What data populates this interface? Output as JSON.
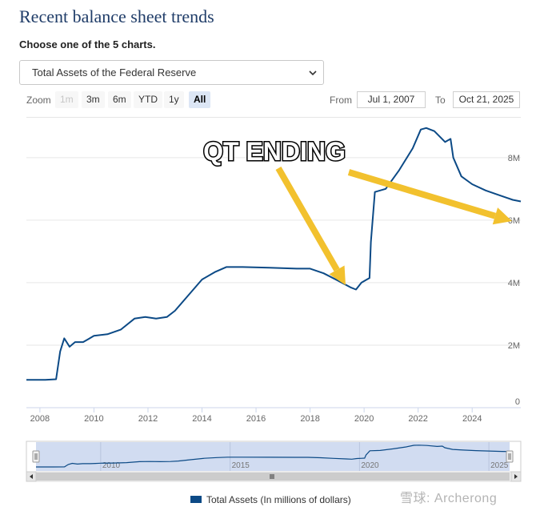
{
  "page": {
    "title": "Recent balance sheet trends",
    "subtitle": "Choose one of the 5 charts.",
    "select_value": "Total Assets of the Federal Reserve"
  },
  "zoom": {
    "label": "Zoom",
    "buttons": [
      {
        "label": "1m",
        "state": "disabled"
      },
      {
        "label": "3m",
        "state": "normal"
      },
      {
        "label": "6m",
        "state": "normal"
      },
      {
        "label": "YTD",
        "state": "normal"
      },
      {
        "label": "1y",
        "state": "normal"
      },
      {
        "label": "All",
        "state": "active"
      }
    ]
  },
  "range": {
    "from_label": "From",
    "from_value": "Jul 1, 2007",
    "to_label": "To",
    "to_value": "Oct 21, 2025"
  },
  "annotation": {
    "text": "QT ENDING",
    "arrow_color": "#f2c12e"
  },
  "legend": {
    "label": "Total Assets (In millions of dollars)"
  },
  "watermark": "雪球: Archerong",
  "colors": {
    "line": "#0c4a86",
    "navigator_fill": "#c9d6ef"
  },
  "chart_data": {
    "type": "line",
    "title": "",
    "xlabel": "",
    "ylabel": "",
    "x_ticks": [
      "2008",
      "2010",
      "2012",
      "2014",
      "2016",
      "2018",
      "2020",
      "2022",
      "2024"
    ],
    "y_ticks": [
      "0",
      "2M",
      "4M",
      "6M",
      "8M"
    ],
    "xlim": [
      2007.5,
      2025.8
    ],
    "ylim": [
      0,
      9.2
    ],
    "navigator_ticks": [
      "2010",
      "2015",
      "2020",
      "2025"
    ],
    "grid": true,
    "legend_position": "bottom",
    "series": [
      {
        "name": "Total Assets (In millions of dollars)",
        "x": [
          2007.5,
          2008.2,
          2008.6,
          2008.75,
          2008.9,
          2009.1,
          2009.3,
          2009.6,
          2009.8,
          2010.0,
          2010.5,
          2011.0,
          2011.5,
          2011.9,
          2012.3,
          2012.7,
          2013.0,
          2013.5,
          2014.0,
          2014.5,
          2014.9,
          2015.5,
          2016.5,
          2017.5,
          2018.0,
          2018.5,
          2019.0,
          2019.5,
          2019.7,
          2019.9,
          2020.1,
          2020.2,
          2020.25,
          2020.4,
          2020.8,
          2021.3,
          2021.8,
          2022.1,
          2022.3,
          2022.6,
          2023.0,
          2023.2,
          2023.3,
          2023.6,
          2024.0,
          2024.5,
          2025.0,
          2025.5,
          2025.8
        ],
        "y": [
          0.89,
          0.89,
          0.91,
          1.8,
          2.22,
          1.95,
          2.1,
          2.1,
          2.2,
          2.3,
          2.35,
          2.5,
          2.85,
          2.9,
          2.85,
          2.9,
          3.1,
          3.6,
          4.1,
          4.35,
          4.5,
          4.5,
          4.48,
          4.45,
          4.45,
          4.3,
          4.08,
          3.85,
          3.78,
          4.0,
          4.1,
          4.15,
          5.3,
          6.9,
          7.0,
          7.6,
          8.3,
          8.9,
          8.95,
          8.85,
          8.5,
          8.6,
          8.0,
          7.4,
          7.15,
          6.95,
          6.8,
          6.65,
          6.6
        ]
      }
    ]
  }
}
